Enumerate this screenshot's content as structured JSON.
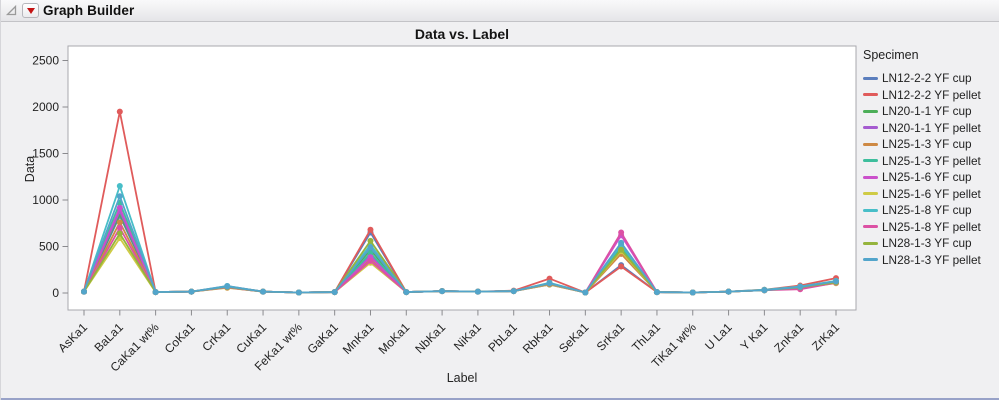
{
  "window": {
    "title": "Graph Builder",
    "disclosure_icon": "open-triangle",
    "menu_icon": "red-triangle-menu",
    "accent_border_color": "#98a2c8"
  },
  "chart_data": {
    "type": "line",
    "title": "Data vs. Label",
    "xlabel": "Label",
    "ylabel": "Data",
    "legend_title": "Specimen",
    "legend_position": "right",
    "grid": false,
    "ylim": [
      0,
      2500
    ],
    "yticks": [
      0,
      500,
      1000,
      1500,
      2000,
      2500
    ],
    "categories": [
      "AsKa1",
      "BaLa1",
      "CaKa1 wt%",
      "CoKa1",
      "CrKa1",
      "CuKa1",
      "FeKa1 wt%",
      "GaKa1",
      "MnKa1",
      "MoKa1",
      "NbKa1",
      "NiKa1",
      "PbLa1",
      "RbKa1",
      "SeKa1",
      "SrKa1",
      "ThLa1",
      "TiKa1 wt%",
      "U La1",
      "Y Ka1",
      "ZnKa1",
      "ZrKa1"
    ],
    "series": [
      {
        "name": "LN12-2-2 YF cup",
        "color": "#5B7EBD",
        "values": [
          15,
          830,
          10,
          15,
          60,
          15,
          5,
          10,
          650,
          10,
          20,
          15,
          20,
          90,
          5,
          300,
          10,
          5,
          15,
          30,
          65,
          120
        ]
      },
      {
        "name": "LN12-2-2 YF pellet",
        "color": "#E05B5B",
        "values": [
          15,
          1950,
          10,
          15,
          70,
          15,
          5,
          10,
          680,
          10,
          20,
          15,
          25,
          155,
          5,
          285,
          10,
          5,
          15,
          35,
          80,
          160
        ]
      },
      {
        "name": "LN20-1-1 YF cup",
        "color": "#4CAE58",
        "values": [
          15,
          850,
          10,
          15,
          65,
          15,
          5,
          10,
          465,
          10,
          20,
          15,
          20,
          100,
          5,
          480,
          10,
          5,
          15,
          30,
          60,
          115
        ]
      },
      {
        "name": "LN20-1-1 YF pellet",
        "color": "#A55BD0",
        "values": [
          15,
          880,
          10,
          15,
          75,
          15,
          5,
          10,
          405,
          10,
          20,
          15,
          20,
          105,
          5,
          430,
          10,
          5,
          15,
          30,
          65,
          125
        ]
      },
      {
        "name": "LN25-1-3 YF cup",
        "color": "#CE8944",
        "values": [
          15,
          760,
          10,
          15,
          60,
          15,
          5,
          10,
          360,
          10,
          20,
          15,
          20,
          95,
          5,
          420,
          10,
          5,
          15,
          30,
          60,
          110
        ]
      },
      {
        "name": "LN25-1-3 YF pellet",
        "color": "#3EBE9D",
        "values": [
          15,
          970,
          10,
          15,
          70,
          15,
          5,
          10,
          430,
          10,
          20,
          15,
          20,
          100,
          5,
          500,
          10,
          5,
          15,
          30,
          65,
          120
        ]
      },
      {
        "name": "LN25-1-6 YF cup",
        "color": "#CB50CB",
        "values": [
          15,
          915,
          10,
          15,
          65,
          15,
          5,
          10,
          385,
          10,
          20,
          15,
          20,
          105,
          5,
          620,
          10,
          5,
          15,
          30,
          60,
          115
        ]
      },
      {
        "name": "LN25-1-6 YF pellet",
        "color": "#CFCB45",
        "values": [
          15,
          590,
          10,
          15,
          55,
          15,
          5,
          10,
          325,
          10,
          20,
          15,
          20,
          90,
          5,
          450,
          10,
          5,
          15,
          30,
          55,
          105
        ]
      },
      {
        "name": "LN25-1-8 YF cup",
        "color": "#48BEC8",
        "values": [
          15,
          1150,
          10,
          15,
          75,
          15,
          5,
          10,
          520,
          10,
          20,
          15,
          20,
          110,
          5,
          520,
          10,
          5,
          15,
          35,
          70,
          130
        ]
      },
      {
        "name": "LN25-1-8 YF pellet",
        "color": "#DC51A4",
        "values": [
          15,
          700,
          10,
          15,
          60,
          15,
          5,
          10,
          345,
          10,
          20,
          15,
          20,
          95,
          5,
          650,
          10,
          5,
          15,
          30,
          40,
          110
        ]
      },
      {
        "name": "LN28-1-3 YF cup",
        "color": "#95B43D",
        "values": [
          15,
          640,
          10,
          15,
          65,
          15,
          5,
          10,
          560,
          10,
          20,
          15,
          20,
          100,
          5,
          465,
          10,
          5,
          15,
          30,
          60,
          115
        ]
      },
      {
        "name": "LN28-1-3 YF pellet",
        "color": "#53A5CB",
        "values": [
          15,
          1040,
          10,
          15,
          70,
          15,
          5,
          10,
          490,
          10,
          20,
          15,
          20,
          105,
          5,
          540,
          10,
          5,
          15,
          30,
          65,
          125
        ]
      }
    ]
  }
}
